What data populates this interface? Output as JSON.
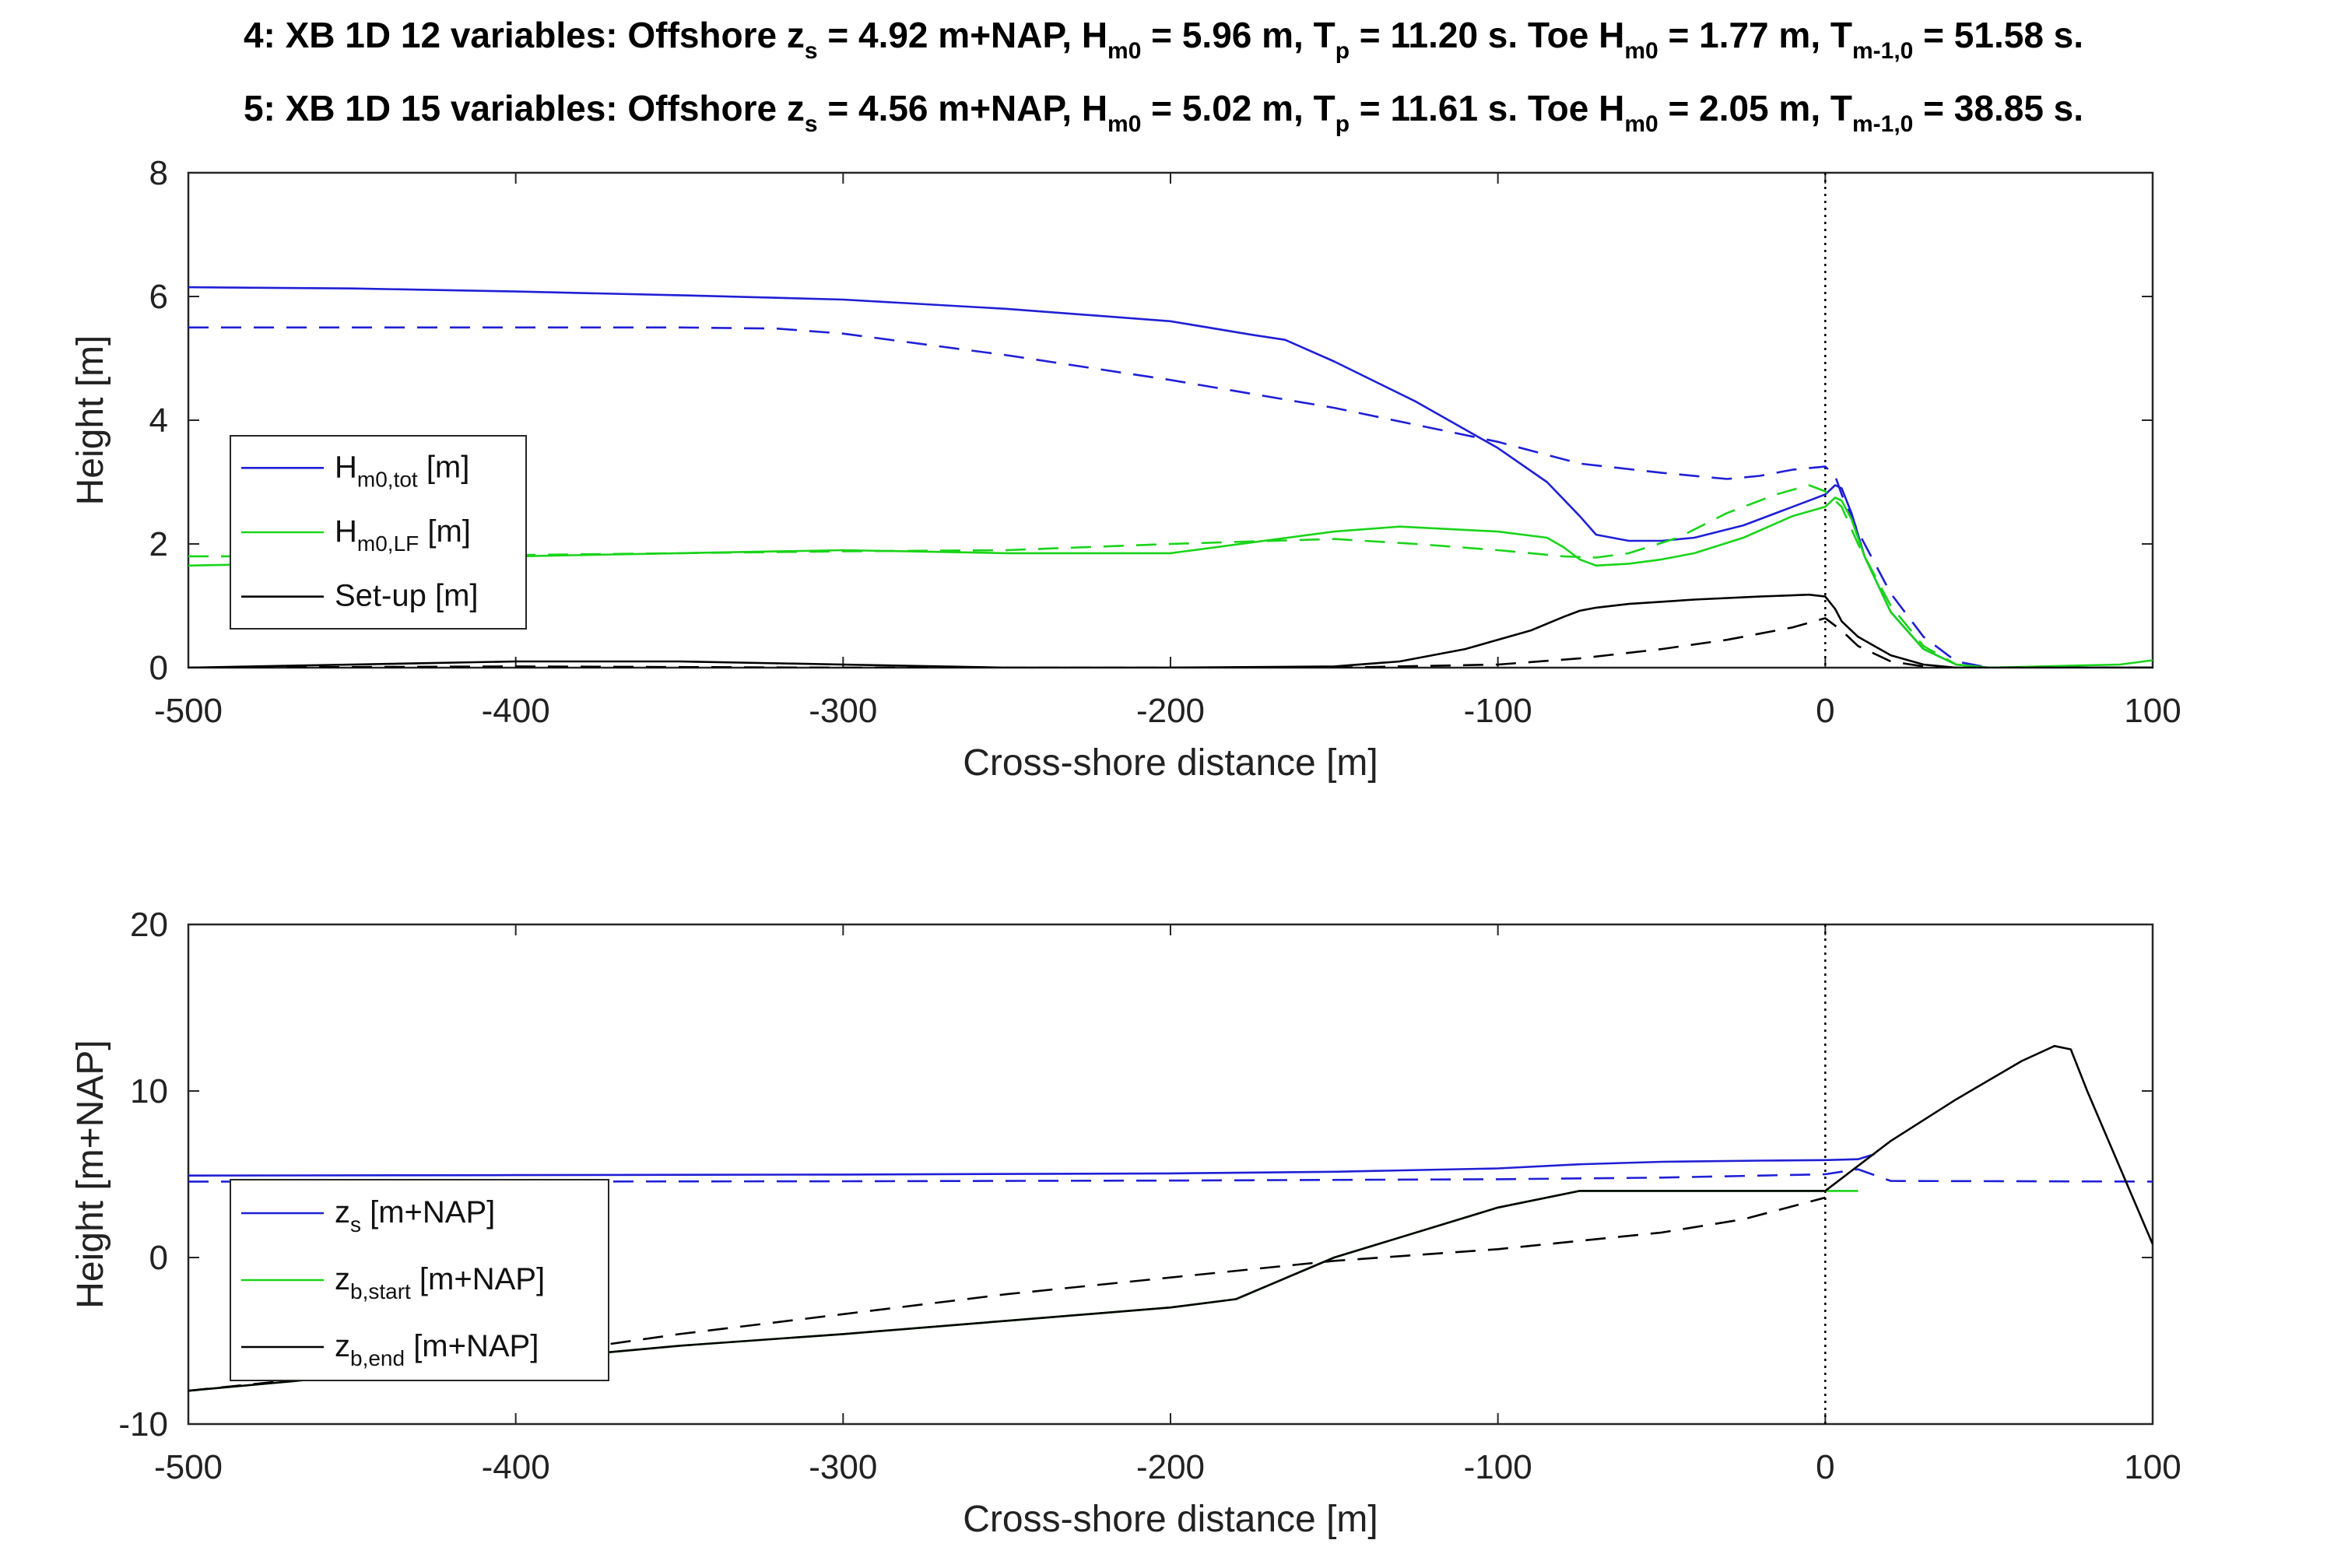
{
  "titles": [
    {
      "prefix": "4: XB 1D 12 variables: Offshore z",
      "zs_sub": "s",
      "zs_val": " = 4.92 m+NAP, H",
      "h_sub": "m0",
      "h_val": " = 5.96 m, T",
      "tp_sub": "p",
      "tp_val": " = 11.20 s. Toe H",
      "toe_sub": "m0",
      "toe_val": " = 1.77 m, T",
      "tm_sub": "m-1,0",
      "tm_val": " = 51.58 s."
    },
    {
      "prefix": "5: XB 1D 15 variables: Offshore z",
      "zs_sub": "s",
      "zs_val": " = 4.56 m+NAP, H",
      "h_sub": "m0",
      "h_val": " = 5.02 m, T",
      "tp_sub": "p",
      "tp_val": " = 11.61 s. Toe H",
      "toe_sub": "m0",
      "toe_val": " = 2.05 m, T",
      "tm_sub": "m-1,0",
      "tm_val": " = 38.85 s."
    }
  ],
  "colors": {
    "blue": "#1f1fd6",
    "green": "#19d419",
    "black": "#000000"
  },
  "chart_data": [
    {
      "type": "line",
      "xlabel": "Cross-shore distance [m]",
      "ylabel": "Height [m]",
      "xlim": [
        -500,
        100
      ],
      "ylim": [
        0,
        8
      ],
      "xticks": [
        -500,
        -400,
        -300,
        -200,
        -100,
        0,
        100
      ],
      "yticks": [
        0,
        2,
        4,
        6,
        8
      ],
      "vline_x": 0,
      "legend_position": "left",
      "legend": [
        {
          "main": "H",
          "sub": "m0,tot",
          "rest": " [m]",
          "color": "blue"
        },
        {
          "main": "H",
          "sub": "m0,LF",
          "rest": " [m]",
          "color": "green"
        },
        {
          "main": "Set-up [m]",
          "sub": "",
          "rest": "",
          "color": "black"
        }
      ],
      "series": [
        {
          "name": "Hm0,tot (4)",
          "color": "blue",
          "dash": false,
          "x": [
            -500,
            -450,
            -400,
            -350,
            -300,
            -250,
            -200,
            -175,
            -165,
            -150,
            -125,
            -100,
            -85,
            -75,
            -70,
            -60,
            -50,
            -40,
            -25,
            -10,
            0,
            3,
            5,
            8,
            12,
            20,
            30,
            40,
            50,
            100
          ],
          "y": [
            6.15,
            6.13,
            6.08,
            6.02,
            5.95,
            5.8,
            5.6,
            5.38,
            5.3,
            4.95,
            4.3,
            3.55,
            3.0,
            2.45,
            2.15,
            2.05,
            2.05,
            2.1,
            2.3,
            2.6,
            2.8,
            2.95,
            2.9,
            2.5,
            1.8,
            0.9,
            0.3,
            0.05,
            0.0,
            0.0
          ]
        },
        {
          "name": "Hm0,tot (5)",
          "color": "blue",
          "dash": true,
          "x": [
            -500,
            -450,
            -400,
            -350,
            -320,
            -300,
            -250,
            -200,
            -150,
            -100,
            -75,
            -50,
            -30,
            -20,
            -10,
            0,
            3,
            5,
            10,
            20,
            30,
            40,
            50,
            100
          ],
          "y": [
            5.5,
            5.5,
            5.5,
            5.5,
            5.48,
            5.4,
            5.05,
            4.65,
            4.2,
            3.65,
            3.3,
            3.15,
            3.05,
            3.1,
            3.2,
            3.25,
            3.1,
            2.8,
            2.2,
            1.2,
            0.5,
            0.1,
            0.0,
            0.0
          ]
        },
        {
          "name": "Hm0,LF (4)",
          "color": "green",
          "dash": false,
          "x": [
            -500,
            -450,
            -400,
            -350,
            -300,
            -250,
            -200,
            -150,
            -130,
            -100,
            -85,
            -80,
            -75,
            -70,
            -60,
            -50,
            -40,
            -25,
            -10,
            0,
            3,
            5,
            8,
            12,
            20,
            30,
            40,
            50,
            90,
            100
          ],
          "y": [
            1.65,
            1.7,
            1.8,
            1.85,
            1.9,
            1.85,
            1.85,
            2.2,
            2.28,
            2.2,
            2.1,
            1.95,
            1.75,
            1.65,
            1.68,
            1.75,
            1.85,
            2.1,
            2.45,
            2.6,
            2.75,
            2.7,
            2.4,
            1.8,
            0.9,
            0.3,
            0.05,
            0.0,
            0.05,
            0.12
          ]
        },
        {
          "name": "Hm0,LF (5)",
          "color": "green",
          "dash": true,
          "x": [
            -500,
            -450,
            -400,
            -350,
            -300,
            -250,
            -200,
            -150,
            -125,
            -100,
            -80,
            -70,
            -60,
            -45,
            -30,
            -15,
            -5,
            0,
            3,
            5,
            10,
            20,
            30,
            40,
            50,
            100
          ],
          "y": [
            1.8,
            1.8,
            1.82,
            1.85,
            1.88,
            1.9,
            2.0,
            2.08,
            2.0,
            1.9,
            1.8,
            1.78,
            1.85,
            2.1,
            2.5,
            2.8,
            2.95,
            2.85,
            2.7,
            2.6,
            2.0,
            1.0,
            0.35,
            0.05,
            0.0,
            0.0
          ]
        },
        {
          "name": "Set-up (4)",
          "color": "black",
          "dash": false,
          "x": [
            -500,
            -450,
            -400,
            -350,
            -300,
            -250,
            -200,
            -150,
            -130,
            -110,
            -90,
            -80,
            -75,
            -70,
            -60,
            -40,
            -20,
            -5,
            0,
            3,
            5,
            10,
            20,
            30,
            40,
            50,
            100
          ],
          "y": [
            0.0,
            0.05,
            0.1,
            0.1,
            0.05,
            0.0,
            0.0,
            0.02,
            0.1,
            0.3,
            0.6,
            0.82,
            0.92,
            0.97,
            1.03,
            1.1,
            1.15,
            1.18,
            1.15,
            0.95,
            0.75,
            0.5,
            0.2,
            0.05,
            0.0,
            0.0,
            0.0
          ]
        },
        {
          "name": "Set-up (5)",
          "color": "black",
          "dash": true,
          "x": [
            -500,
            -400,
            -300,
            -250,
            -200,
            -150,
            -100,
            -75,
            -50,
            -30,
            -10,
            0,
            5,
            10,
            20,
            30,
            40,
            50,
            100
          ],
          "y": [
            0.0,
            0.02,
            0.0,
            0.0,
            0.0,
            0.0,
            0.05,
            0.15,
            0.3,
            0.45,
            0.65,
            0.8,
            0.6,
            0.35,
            0.1,
            0.02,
            0.0,
            0.0,
            0.0
          ]
        }
      ]
    },
    {
      "type": "line",
      "xlabel": "Cross-shore distance [m]",
      "ylabel": "Height [m+NAP]",
      "xlim": [
        -500,
        100
      ],
      "ylim": [
        -10,
        20
      ],
      "xticks": [
        -500,
        -400,
        -300,
        -200,
        -100,
        0,
        100
      ],
      "yticks": [
        -10,
        0,
        10,
        20
      ],
      "vline_x": 0,
      "legend_position": "left",
      "legend": [
        {
          "main": "z",
          "sub": "s",
          "rest": " [m+NAP]",
          "color": "blue"
        },
        {
          "main": "z",
          "sub": "b,start",
          "rest": " [m+NAP]",
          "color": "green"
        },
        {
          "main": "z",
          "sub": "b,end",
          "rest": " [m+NAP]",
          "color": "black"
        }
      ],
      "series": [
        {
          "name": "zs (4)",
          "color": "blue",
          "dash": false,
          "x": [
            -500,
            -400,
            -300,
            -200,
            -150,
            -100,
            -75,
            -50,
            -20,
            0,
            10,
            15
          ],
          "y": [
            4.92,
            4.95,
            4.98,
            5.05,
            5.15,
            5.35,
            5.6,
            5.75,
            5.82,
            5.85,
            5.9,
            6.2
          ]
        },
        {
          "name": "zs (5)",
          "color": "blue",
          "dash": true,
          "x": [
            -500,
            -400,
            -300,
            -200,
            -100,
            -50,
            0,
            10,
            20,
            100
          ],
          "y": [
            4.56,
            4.56,
            4.58,
            4.62,
            4.7,
            4.8,
            5.0,
            5.3,
            4.6,
            4.56
          ]
        },
        {
          "name": "zb,start",
          "color": "green",
          "dash": false,
          "x": [
            -500,
            -400,
            -350,
            -300,
            -250,
            -200,
            -180,
            -150,
            -100,
            -75,
            -50,
            -25,
            0,
            10
          ],
          "y": [
            -8.0,
            -6.2,
            -5.3,
            -4.6,
            -3.8,
            -3.0,
            -2.5,
            0.0,
            3.0,
            4.0,
            4.0,
            4.0,
            4.0,
            4.0
          ]
        },
        {
          "name": "zb,end (4)",
          "color": "black",
          "dash": false,
          "x": [
            -500,
            -400,
            -350,
            -300,
            -250,
            -200,
            -180,
            -150,
            -100,
            -75,
            -50,
            -25,
            0,
            20,
            40,
            60,
            70,
            75,
            80,
            100
          ],
          "y": [
            -8.0,
            -6.2,
            -5.3,
            -4.6,
            -3.8,
            -3.0,
            -2.5,
            0.0,
            3.0,
            4.0,
            4.0,
            4.0,
            4.0,
            7.0,
            9.5,
            11.8,
            12.7,
            12.5,
            10.0,
            0.8
          ]
        },
        {
          "name": "zb,end (5)",
          "color": "black",
          "dash": true,
          "x": [
            -500,
            -400,
            -350,
            -300,
            -250,
            -200,
            -150,
            -100,
            -50,
            -25,
            0
          ],
          "y": [
            -8.0,
            -6.0,
            -4.6,
            -3.4,
            -2.2,
            -1.2,
            -0.2,
            0.5,
            1.5,
            2.3,
            3.6
          ]
        }
      ]
    }
  ]
}
